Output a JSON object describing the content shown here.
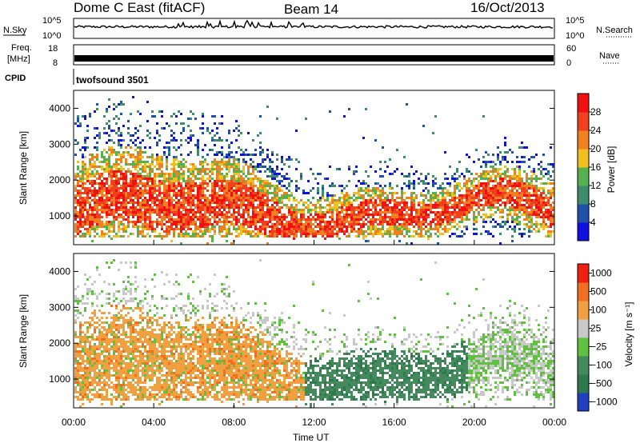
{
  "header": {
    "title": "Dome C East (fitACF)",
    "beam": "Beam 14",
    "date": "16/Oct/2013"
  },
  "panels": {
    "nsky": {
      "label": "N.Sky",
      "right_label": "N.Search",
      "left_ticks": [
        "10^5",
        "10^0"
      ],
      "right_ticks": [
        "10^5",
        "10^0"
      ]
    },
    "freq": {
      "label_line1": "Freq.",
      "label_line2": "[MHz]",
      "left_ticks": [
        "18",
        "8"
      ],
      "right_ticks": [
        "60",
        "0"
      ],
      "right_label": "Nave"
    },
    "cpid": {
      "label": "CPID",
      "value": "twofsound 3501"
    }
  },
  "chart_data": [
    {
      "type": "heatmap",
      "name": "power",
      "ylabel": "Slant Range [km]",
      "ylim": [
        200,
        4500
      ],
      "y_ticks": [
        "4000",
        "3000",
        "2000",
        "1000"
      ],
      "colorbar": {
        "label": "Power [dB]",
        "colors": [
          "#1010e0",
          "#2050a8",
          "#3e8c6c",
          "#56b050",
          "#f0c020",
          "#f08020",
          "#f04020",
          "#f01010"
        ],
        "tick_labels": [
          "4",
          "8",
          "12",
          "16",
          "20",
          "24",
          "28"
        ]
      }
    },
    {
      "type": "heatmap",
      "name": "velocity",
      "ylabel": "Slant Range [km]",
      "xlabel": "Time UT",
      "ylim": [
        200,
        4500
      ],
      "y_ticks": [
        "4000",
        "3000",
        "2000",
        "1000"
      ],
      "x_ticks": [
        "00:00",
        "04:00",
        "08:00",
        "12:00",
        "16:00",
        "20:00",
        "00:00"
      ],
      "colorbar": {
        "label": "Velocity [m s⁻¹]",
        "colors": [
          "#2040c0",
          "#2e7a4e",
          "#448a5c",
          "#60c040",
          "#c8c8c8",
          "#f0a040",
          "#f07020",
          "#f02010"
        ],
        "tick_labels": [
          "1000",
          "500",
          "100",
          "25",
          "−25",
          "−100",
          "−500",
          "−1000"
        ]
      }
    }
  ]
}
